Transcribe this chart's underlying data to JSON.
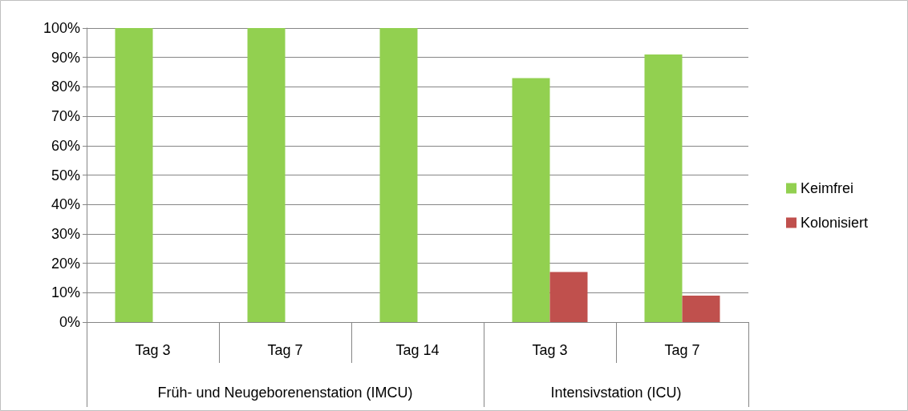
{
  "chart_data": {
    "type": "bar",
    "categories": [
      "Tag 3",
      "Tag 7",
      "Tag 14",
      "Tag 3",
      "Tag 7"
    ],
    "series": [
      {
        "name": "Keimfrei",
        "color": "#92d050",
        "values": [
          100,
          100,
          100,
          83,
          91
        ]
      },
      {
        "name": "Kolonisiert",
        "color": "#c0504d",
        "values": [
          0,
          0,
          0,
          17,
          9
        ]
      }
    ],
    "ylim": [
      0,
      100
    ],
    "yticks": [
      {
        "value": 0,
        "label": "0%"
      },
      {
        "value": 10,
        "label": "10%"
      },
      {
        "value": 20,
        "label": "20%"
      },
      {
        "value": 30,
        "label": "30%"
      },
      {
        "value": 40,
        "label": "40%"
      },
      {
        "value": 50,
        "label": "50%"
      },
      {
        "value": 60,
        "label": "60%"
      },
      {
        "value": 70,
        "label": "70%"
      },
      {
        "value": 80,
        "label": "80%"
      },
      {
        "value": 90,
        "label": "90%"
      },
      {
        "value": 100,
        "label": "100%"
      }
    ],
    "grid": "y",
    "legend": "right",
    "annotations": [
      "Früh- und Neugeborenenstation (IMCU)",
      "Intensivstation (ICU)"
    ]
  }
}
